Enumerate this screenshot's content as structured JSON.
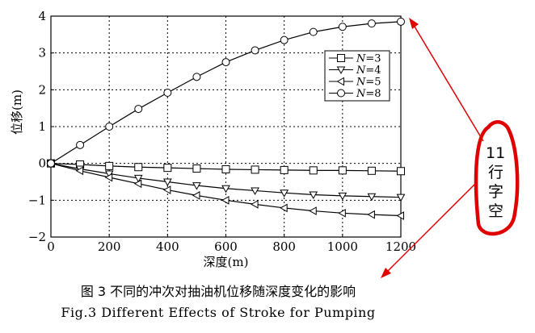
{
  "chart_data": {
    "type": "line",
    "xlabel": "深度(m)",
    "ylabel": "位移(m)",
    "xlim": [
      0,
      1200
    ],
    "ylim": [
      -2,
      4
    ],
    "xticks": [
      "0",
      "200",
      "400",
      "600",
      "800",
      "1000",
      "1200"
    ],
    "yticks": [
      "−2",
      "−1",
      "0",
      "1",
      "2",
      "3",
      "4"
    ],
    "grid": true,
    "legend_position": "right",
    "x": [
      0,
      100,
      200,
      300,
      400,
      500,
      600,
      700,
      800,
      900,
      1000,
      1100,
      1200
    ],
    "series": [
      {
        "name": "N=3",
        "marker": "square",
        "values": [
          0,
          -0.03,
          -0.07,
          -0.1,
          -0.12,
          -0.14,
          -0.16,
          -0.17,
          -0.18,
          -0.19,
          -0.19,
          -0.2,
          -0.21
        ]
      },
      {
        "name": "N=4",
        "marker": "triangle-down",
        "values": [
          0,
          -0.15,
          -0.28,
          -0.4,
          -0.5,
          -0.6,
          -0.68,
          -0.74,
          -0.8,
          -0.85,
          -0.88,
          -0.9,
          -0.92
        ]
      },
      {
        "name": "N=5",
        "marker": "triangle-left",
        "values": [
          0,
          -0.2,
          -0.38,
          -0.55,
          -0.72,
          -0.87,
          -1.0,
          -1.11,
          -1.21,
          -1.29,
          -1.35,
          -1.39,
          -1.42
        ]
      },
      {
        "name": "N=8",
        "marker": "circle",
        "values": [
          0,
          0.5,
          1.0,
          1.48,
          1.92,
          2.35,
          2.75,
          3.07,
          3.35,
          3.57,
          3.71,
          3.8,
          3.85
        ]
      }
    ]
  },
  "caption": {
    "chinese": "图 3  不同的冲次对抽油机位移随深度变化的影响",
    "english": "Fig.3  Different Effects of Stroke for Pumping"
  },
  "annotation": {
    "text": [
      "11",
      "行",
      "字",
      "空"
    ],
    "color": "#e00000"
  }
}
